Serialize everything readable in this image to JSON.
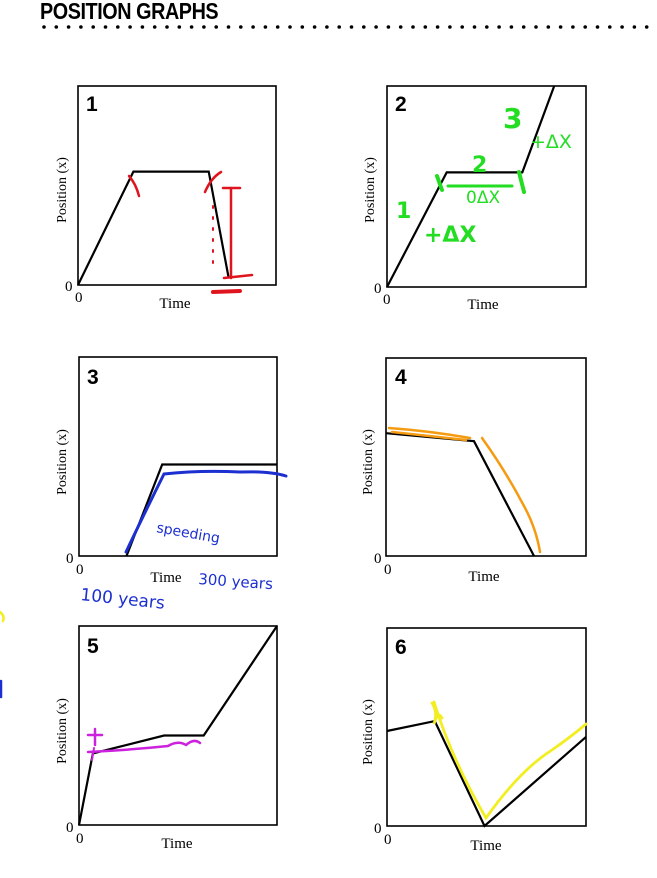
{
  "title": "POSITION GRAPHS",
  "graphs": [
    {
      "number": "1",
      "ylabel": "Position (x)",
      "xlabel": "Time",
      "origin_y": "0",
      "origin_x": "0",
      "points": [
        [
          0,
          0
        ],
        [
          0.28,
          0.57
        ],
        [
          0.66,
          0.57
        ],
        [
          0.76,
          0.04
        ]
      ]
    },
    {
      "number": "2",
      "ylabel": "Position (x)",
      "xlabel": "Time",
      "origin_y": "0",
      "origin_x": "0",
      "points": [
        [
          0,
          0
        ],
        [
          0.3,
          0.57
        ],
        [
          0.68,
          0.57
        ],
        [
          0.84,
          1.0
        ]
      ],
      "annotations": [
        "1",
        "+ΔX",
        "2",
        "0ΔX",
        "3",
        "+ΔX"
      ]
    },
    {
      "number": "3",
      "ylabel": "Position (x)",
      "xlabel": "Time",
      "origin_y": "0",
      "origin_x": "0",
      "points": [
        [
          0.24,
          0.0
        ],
        [
          0.42,
          0.46
        ],
        [
          1.0,
          0.46
        ]
      ],
      "annotations": [
        "speeding",
        "100 years",
        "300 years"
      ]
    },
    {
      "number": "4",
      "ylabel": "Position (x)",
      "xlabel": "Time",
      "origin_y": "0",
      "origin_x": "0",
      "points": [
        [
          0,
          0.62
        ],
        [
          0.44,
          0.58
        ],
        [
          0.74,
          0.0
        ]
      ]
    },
    {
      "number": "5",
      "ylabel": "Position (x)",
      "xlabel": "Time",
      "origin_y": "0",
      "origin_x": "0",
      "points": [
        [
          0,
          0
        ],
        [
          0.07,
          0.36
        ],
        [
          0.43,
          0.45
        ],
        [
          0.63,
          0.45
        ],
        [
          1.0,
          1.0
        ]
      ]
    },
    {
      "number": "6",
      "ylabel": "Position (x)",
      "xlabel": "Time",
      "origin_y": "0",
      "origin_x": "0",
      "points": [
        [
          0,
          0.48
        ],
        [
          0.24,
          0.53
        ],
        [
          0.49,
          0.0
        ],
        [
          1.0,
          0.45
        ]
      ]
    }
  ]
}
